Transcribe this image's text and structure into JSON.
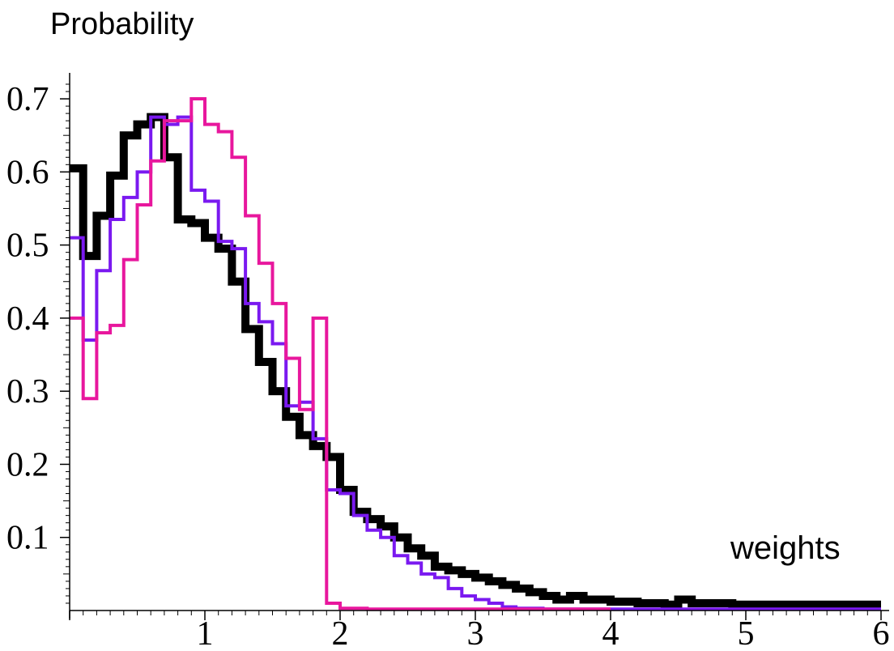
{
  "chart_data": {
    "type": "line",
    "step": true,
    "ylabel": "Probability",
    "xlabel": "weights",
    "xlim": [
      0,
      6
    ],
    "ylim": [
      0,
      0.72
    ],
    "x_ticks": [
      1,
      2,
      3,
      4,
      5,
      6
    ],
    "y_ticks": [
      0.1,
      0.2,
      0.3,
      0.4,
      0.5,
      0.6,
      0.7
    ],
    "bin_width": 0.1,
    "series": [
      {
        "color": "#000000",
        "line_width": 10,
        "values": [
          0.605,
          0.485,
          0.54,
          0.595,
          0.65,
          0.665,
          0.675,
          0.62,
          0.535,
          0.53,
          0.51,
          0.495,
          0.45,
          0.385,
          0.34,
          0.3,
          0.265,
          0.24,
          0.225,
          0.21,
          0.165,
          0.135,
          0.125,
          0.115,
          0.1,
          0.085,
          0.075,
          0.06,
          0.055,
          0.05,
          0.045,
          0.04,
          0.035,
          0.03,
          0.025,
          0.02,
          0.015,
          0.02,
          0.015,
          0.015,
          0.012,
          0.012,
          0.01,
          0.01,
          0.008,
          0.015,
          0.01,
          0.01,
          0.01,
          0.008,
          0.008,
          0.008,
          0.008,
          0.008,
          0.008,
          0.008,
          0.008,
          0.008,
          0.008,
          0.008
        ]
      },
      {
        "color": "#7a19f0",
        "line_width": 4,
        "values": [
          0.51,
          0.37,
          0.465,
          0.535,
          0.565,
          0.6,
          0.675,
          0.665,
          0.675,
          0.575,
          0.56,
          0.505,
          0.495,
          0.42,
          0.395,
          0.365,
          0.28,
          0.285,
          0.235,
          0.165,
          0.16,
          0.13,
          0.11,
          0.1,
          0.075,
          0.065,
          0.05,
          0.045,
          0.03,
          0.02,
          0.015,
          0.01,
          0.005,
          0.003,
          0.003,
          0.002,
          0.002,
          0.002,
          0.002,
          0.002,
          0.002,
          0.002,
          0.002,
          0.002,
          0.002,
          0.002,
          0.002,
          0.002,
          0.002,
          0.002,
          0.002,
          0.002,
          0.002,
          0.002,
          0.002,
          0.002,
          0.002,
          0.002,
          0.002,
          0.002
        ]
      },
      {
        "color": "#e8179d",
        "line_width": 4,
        "values": [
          0.4,
          0.29,
          0.38,
          0.39,
          0.48,
          0.555,
          0.615,
          0.67,
          0.67,
          0.7,
          0.665,
          0.655,
          0.62,
          0.54,
          0.475,
          0.42,
          0.345,
          0.275,
          0.4,
          0.01,
          0.003,
          0.003,
          0.002,
          0.002,
          0.002,
          0.002,
          0.002,
          0.002,
          0.002,
          0.002,
          0.002,
          0.002,
          0.002,
          0.002,
          0.002,
          0.002,
          0.002,
          0.002,
          0.002,
          0.002
        ]
      }
    ]
  }
}
